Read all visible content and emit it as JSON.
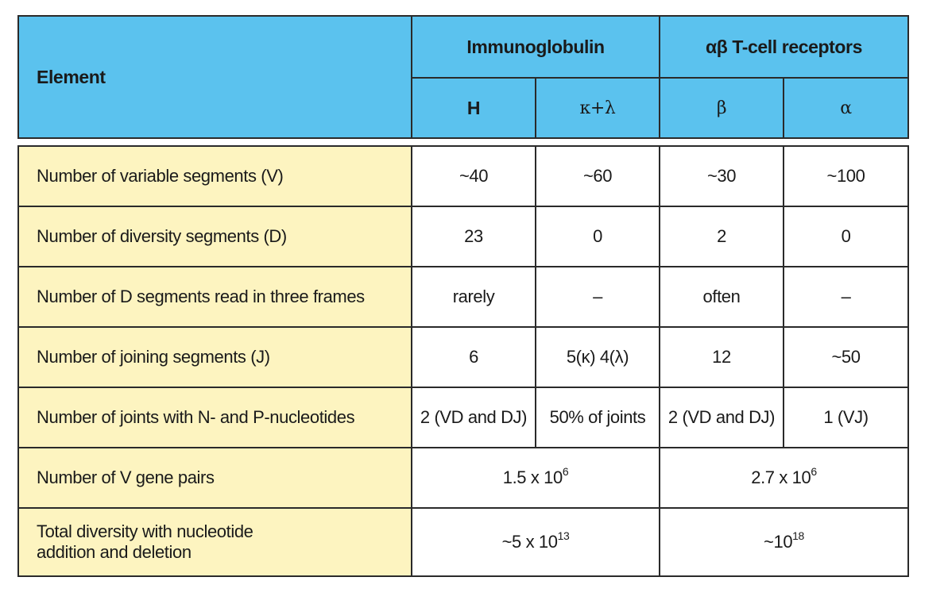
{
  "header": {
    "element": "Element",
    "immunoglobulin": "Immunoglobulin",
    "tcr": "αβ T-cell receptors",
    "sub": [
      "H",
      "κ+λ",
      "β",
      "α"
    ]
  },
  "rows": [
    {
      "label": "Number of variable segments (V)",
      "values": [
        "~40",
        "~60",
        "~30",
        "~100"
      ]
    },
    {
      "label": "Number of diversity segments (D)",
      "values": [
        "23",
        "0",
        "2",
        "0"
      ]
    },
    {
      "label": "Number of D segments read in three frames",
      "values": [
        "rarely",
        "–",
        "often",
        "–"
      ]
    },
    {
      "label": "Number of joining segments (J)",
      "values": [
        "6",
        "5(κ) 4(λ)",
        "12",
        "~50"
      ]
    },
    {
      "label": "Number of joints with N- and P-nucleotides",
      "values": [
        "2 (VD and DJ)",
        "50% of joints",
        "2 (VD and DJ)",
        "1 (VJ)"
      ]
    }
  ],
  "pairs_row": {
    "label": "Number of V gene pairs",
    "ig": {
      "base": "1.5 x 10",
      "exp": "6"
    },
    "tcr": {
      "base": "2.7 x 10",
      "exp": "6"
    }
  },
  "total_row": {
    "label_line1": "Total diversity with nucleotide",
    "label_line2": "addition and deletion",
    "ig": {
      "base": "~5 x 10",
      "exp": "13"
    },
    "tcr": {
      "base": "~10",
      "exp": "18"
    }
  }
}
